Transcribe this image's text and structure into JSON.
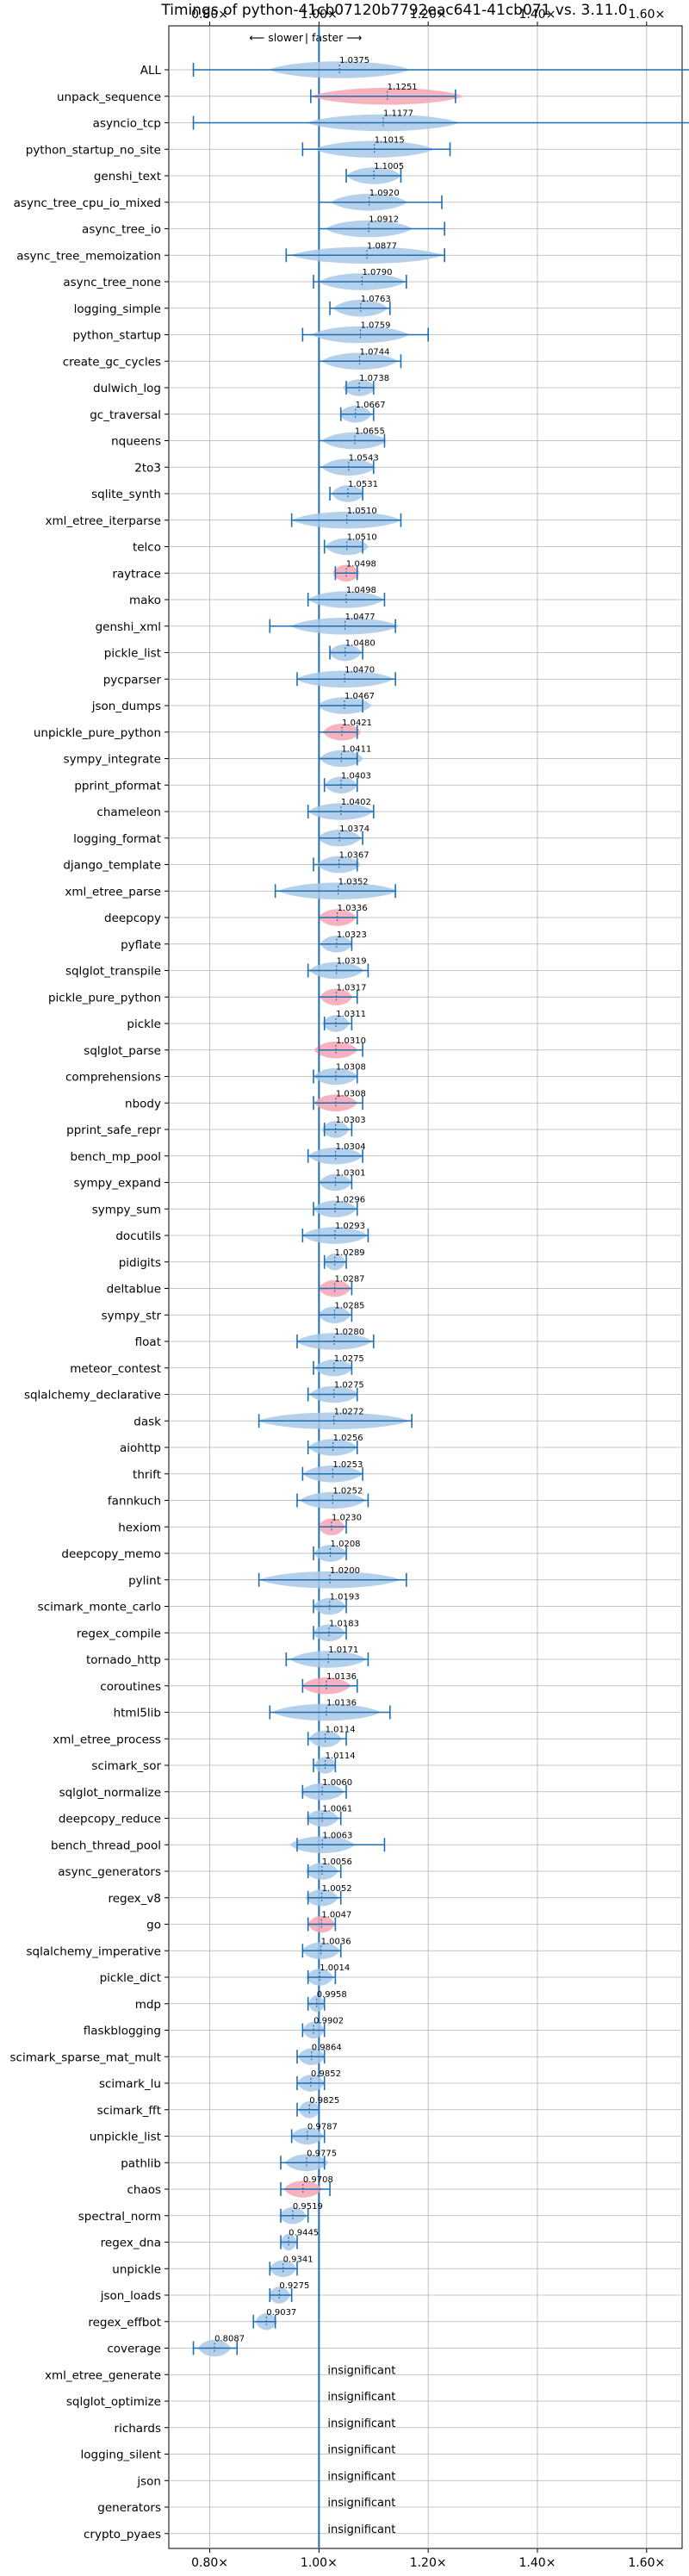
{
  "chart_data": {
    "type": "violin",
    "title": "Timings of python-41cb07120b7792eac641-41cb071 vs. 3.11.0",
    "direction_left": "⟵ slower",
    "direction_sep": "|",
    "direction_right": "faster ⟶",
    "xlim": [
      0.725,
      1.665
    ],
    "xticks": [
      {
        "value": 0.8,
        "label": "0.80×"
      },
      {
        "value": 1.0,
        "label": "1.00×"
      },
      {
        "value": 1.2,
        "label": "1.20×"
      },
      {
        "value": 1.4,
        "label": "1.40×"
      },
      {
        "value": 1.6,
        "label": "1.60×"
      }
    ],
    "grid": true,
    "reference_line": 1.0,
    "colors": {
      "normal": "#a8c8e8",
      "highlight": "#f4a6b4",
      "whisker": "#1f6eb0",
      "refline": "#1f6eb0",
      "grid": "#b0b0b0"
    },
    "insignificant_text": "insignificant",
    "benchmarks": [
      {
        "name": "ALL",
        "value": 1.0375,
        "label": "1.0375",
        "min": 0.77,
        "max": 1.69,
        "spread": 0.13,
        "highlight": false
      },
      {
        "name": "unpack_sequence",
        "value": 1.1251,
        "label": "1.1251",
        "min": 0.985,
        "max": 1.25,
        "spread": 0.14,
        "highlight": true
      },
      {
        "name": "asyncio_tcp",
        "value": 1.1177,
        "label": "1.1177",
        "min": 0.77,
        "max": 1.69,
        "spread": 0.14,
        "highlight": false
      },
      {
        "name": "python_startup_no_site",
        "value": 1.1015,
        "label": "1.1015",
        "min": 0.97,
        "max": 1.24,
        "spread": 0.11,
        "highlight": false
      },
      {
        "name": "genshi_text",
        "value": 1.1005,
        "label": "1.1005",
        "min": 1.05,
        "max": 1.15,
        "spread": 0.05,
        "highlight": false
      },
      {
        "name": "async_tree_cpu_io_mixed",
        "value": 1.092,
        "label": "1.0920",
        "min": 1.0,
        "max": 1.225,
        "spread": 0.07,
        "highlight": false
      },
      {
        "name": "async_tree_io",
        "value": 1.0912,
        "label": "1.0912",
        "min": 1.0,
        "max": 1.23,
        "spread": 0.08,
        "highlight": false
      },
      {
        "name": "async_tree_memoization",
        "value": 1.0877,
        "label": "1.0877",
        "min": 0.94,
        "max": 1.23,
        "spread": 0.14,
        "highlight": false
      },
      {
        "name": "async_tree_none",
        "value": 1.079,
        "label": "1.0790",
        "min": 0.99,
        "max": 1.16,
        "spread": 0.08,
        "highlight": false
      },
      {
        "name": "logging_simple",
        "value": 1.0763,
        "label": "1.0763",
        "min": 1.02,
        "max": 1.13,
        "spread": 0.05,
        "highlight": false
      },
      {
        "name": "python_startup",
        "value": 1.0759,
        "label": "1.0759",
        "min": 0.97,
        "max": 1.2,
        "spread": 0.09,
        "highlight": false
      },
      {
        "name": "create_gc_cycles",
        "value": 1.0744,
        "label": "1.0744",
        "min": 1.0,
        "max": 1.15,
        "spread": 0.07,
        "highlight": false
      },
      {
        "name": "dulwich_log",
        "value": 1.0738,
        "label": "1.0738",
        "min": 1.05,
        "max": 1.1,
        "spread": 0.03,
        "highlight": false
      },
      {
        "name": "gc_traversal",
        "value": 1.0667,
        "label": "1.0667",
        "min": 1.04,
        "max": 1.1,
        "spread": 0.03,
        "highlight": false
      },
      {
        "name": "nqueens",
        "value": 1.0655,
        "label": "1.0655",
        "min": 1.0,
        "max": 1.12,
        "spread": 0.06,
        "highlight": false
      },
      {
        "name": "2to3",
        "value": 1.0543,
        "label": "1.0543",
        "min": 1.0,
        "max": 1.1,
        "spread": 0.05,
        "highlight": false
      },
      {
        "name": "sqlite_synth",
        "value": 1.0531,
        "label": "1.0531",
        "min": 1.02,
        "max": 1.08,
        "spread": 0.03,
        "highlight": false
      },
      {
        "name": "xml_etree_iterparse",
        "value": 1.051,
        "label": "1.0510",
        "min": 0.95,
        "max": 1.15,
        "spread": 0.1,
        "highlight": false
      },
      {
        "name": "telco",
        "value": 1.051,
        "label": "1.0510",
        "min": 1.01,
        "max": 1.08,
        "spread": 0.04,
        "highlight": false
      },
      {
        "name": "raytrace",
        "value": 1.0498,
        "label": "1.0498",
        "min": 1.03,
        "max": 1.07,
        "spread": 0.025,
        "highlight": true
      },
      {
        "name": "mako",
        "value": 1.0498,
        "label": "1.0498",
        "min": 0.98,
        "max": 1.12,
        "spread": 0.07,
        "highlight": false
      },
      {
        "name": "genshi_xml",
        "value": 1.0477,
        "label": "1.0477",
        "min": 0.91,
        "max": 1.14,
        "spread": 0.1,
        "highlight": false
      },
      {
        "name": "pickle_list",
        "value": 1.048,
        "label": "1.0480",
        "min": 1.02,
        "max": 1.08,
        "spread": 0.03,
        "highlight": false
      },
      {
        "name": "pycparser",
        "value": 1.047,
        "label": "1.0470",
        "min": 0.96,
        "max": 1.14,
        "spread": 0.09,
        "highlight": false
      },
      {
        "name": "json_dumps",
        "value": 1.0467,
        "label": "1.0467",
        "min": 1.0,
        "max": 1.08,
        "spread": 0.05,
        "highlight": false
      },
      {
        "name": "unpickle_pure_python",
        "value": 1.0421,
        "label": "1.0421",
        "min": 1.0,
        "max": 1.07,
        "spread": 0.035,
        "highlight": true
      },
      {
        "name": "sympy_integrate",
        "value": 1.0411,
        "label": "1.0411",
        "min": 1.0,
        "max": 1.07,
        "spread": 0.04,
        "highlight": false
      },
      {
        "name": "pprint_pformat",
        "value": 1.0403,
        "label": "1.0403",
        "min": 1.01,
        "max": 1.07,
        "spread": 0.03,
        "highlight": false
      },
      {
        "name": "chameleon",
        "value": 1.0402,
        "label": "1.0402",
        "min": 0.98,
        "max": 1.1,
        "spread": 0.06,
        "highlight": false
      },
      {
        "name": "logging_format",
        "value": 1.0374,
        "label": "1.0374",
        "min": 1.0,
        "max": 1.08,
        "spread": 0.04,
        "highlight": false
      },
      {
        "name": "django_template",
        "value": 1.0367,
        "label": "1.0367",
        "min": 0.99,
        "max": 1.07,
        "spread": 0.04,
        "highlight": false
      },
      {
        "name": "xml_etree_parse",
        "value": 1.0352,
        "label": "1.0352",
        "min": 0.92,
        "max": 1.14,
        "spread": 0.11,
        "highlight": false
      },
      {
        "name": "deepcopy",
        "value": 1.0336,
        "label": "1.0336",
        "min": 1.0,
        "max": 1.07,
        "spread": 0.035,
        "highlight": true
      },
      {
        "name": "pyflate",
        "value": 1.0323,
        "label": "1.0323",
        "min": 1.0,
        "max": 1.06,
        "spread": 0.03,
        "highlight": false
      },
      {
        "name": "sqlglot_transpile",
        "value": 1.0319,
        "label": "1.0319",
        "min": 0.98,
        "max": 1.09,
        "spread": 0.05,
        "highlight": false
      },
      {
        "name": "pickle_pure_python",
        "value": 1.0317,
        "label": "1.0317",
        "min": 1.0,
        "max": 1.07,
        "spread": 0.03,
        "highlight": true
      },
      {
        "name": "pickle",
        "value": 1.0311,
        "label": "1.0311",
        "min": 1.01,
        "max": 1.06,
        "spread": 0.025,
        "highlight": false
      },
      {
        "name": "sqlglot_parse",
        "value": 1.031,
        "label": "1.0310",
        "min": 1.0,
        "max": 1.08,
        "spread": 0.04,
        "highlight": true
      },
      {
        "name": "comprehensions",
        "value": 1.0308,
        "label": "1.0308",
        "min": 0.99,
        "max": 1.07,
        "spread": 0.04,
        "highlight": false
      },
      {
        "name": "nbody",
        "value": 1.0308,
        "label": "1.0308",
        "min": 0.99,
        "max": 1.08,
        "spread": 0.04,
        "highlight": true
      },
      {
        "name": "pprint_safe_repr",
        "value": 1.0303,
        "label": "1.0303",
        "min": 1.01,
        "max": 1.06,
        "spread": 0.025,
        "highlight": false
      },
      {
        "name": "bench_mp_pool",
        "value": 1.0304,
        "label": "1.0304",
        "min": 0.98,
        "max": 1.08,
        "spread": 0.05,
        "highlight": false
      },
      {
        "name": "sympy_expand",
        "value": 1.0301,
        "label": "1.0301",
        "min": 1.0,
        "max": 1.06,
        "spread": 0.03,
        "highlight": false
      },
      {
        "name": "sympy_sum",
        "value": 1.0296,
        "label": "1.0296",
        "min": 0.99,
        "max": 1.07,
        "spread": 0.04,
        "highlight": false
      },
      {
        "name": "docutils",
        "value": 1.0293,
        "label": "1.0293",
        "min": 0.97,
        "max": 1.09,
        "spread": 0.06,
        "highlight": false
      },
      {
        "name": "pidigits",
        "value": 1.0289,
        "label": "1.0289",
        "min": 1.01,
        "max": 1.05,
        "spread": 0.02,
        "highlight": false
      },
      {
        "name": "deltablue",
        "value": 1.0287,
        "label": "1.0287",
        "min": 1.0,
        "max": 1.06,
        "spread": 0.03,
        "highlight": true
      },
      {
        "name": "sympy_str",
        "value": 1.0285,
        "label": "1.0285",
        "min": 1.0,
        "max": 1.06,
        "spread": 0.03,
        "highlight": false
      },
      {
        "name": "float",
        "value": 1.028,
        "label": "1.0280",
        "min": 0.96,
        "max": 1.1,
        "spread": 0.07,
        "highlight": false
      },
      {
        "name": "meteor_contest",
        "value": 1.0275,
        "label": "1.0275",
        "min": 0.99,
        "max": 1.06,
        "spread": 0.035,
        "highlight": false
      },
      {
        "name": "sqlalchemy_declarative",
        "value": 1.0275,
        "label": "1.0275",
        "min": 0.98,
        "max": 1.07,
        "spread": 0.045,
        "highlight": false
      },
      {
        "name": "dask",
        "value": 1.0272,
        "label": "1.0272",
        "min": 0.89,
        "max": 1.17,
        "spread": 0.14,
        "highlight": false
      },
      {
        "name": "aiohttp",
        "value": 1.0256,
        "label": "1.0256",
        "min": 0.98,
        "max": 1.07,
        "spread": 0.045,
        "highlight": false
      },
      {
        "name": "thrift",
        "value": 1.0253,
        "label": "1.0253",
        "min": 0.97,
        "max": 1.08,
        "spread": 0.055,
        "highlight": false
      },
      {
        "name": "fannkuch",
        "value": 1.0252,
        "label": "1.0252",
        "min": 0.96,
        "max": 1.09,
        "spread": 0.06,
        "highlight": false
      },
      {
        "name": "hexiom",
        "value": 1.023,
        "label": "1.0230",
        "min": 1.0,
        "max": 1.05,
        "spread": 0.025,
        "highlight": true
      },
      {
        "name": "deepcopy_memo",
        "value": 1.0208,
        "label": "1.0208",
        "min": 0.99,
        "max": 1.05,
        "spread": 0.03,
        "highlight": false
      },
      {
        "name": "pylint",
        "value": 1.02,
        "label": "1.0200",
        "min": 0.89,
        "max": 1.16,
        "spread": 0.13,
        "highlight": false
      },
      {
        "name": "scimark_monte_carlo",
        "value": 1.0193,
        "label": "1.0193",
        "min": 0.99,
        "max": 1.05,
        "spread": 0.03,
        "highlight": false
      },
      {
        "name": "regex_compile",
        "value": 1.0183,
        "label": "1.0183",
        "min": 0.99,
        "max": 1.05,
        "spread": 0.03,
        "highlight": false
      },
      {
        "name": "tornado_http",
        "value": 1.0171,
        "label": "1.0171",
        "min": 0.94,
        "max": 1.09,
        "spread": 0.07,
        "highlight": false
      },
      {
        "name": "coroutines",
        "value": 1.0136,
        "label": "1.0136",
        "min": 0.97,
        "max": 1.07,
        "spread": 0.045,
        "highlight": true
      },
      {
        "name": "html5lib",
        "value": 1.0136,
        "label": "1.0136",
        "min": 0.91,
        "max": 1.13,
        "spread": 0.1,
        "highlight": false
      },
      {
        "name": "xml_etree_process",
        "value": 1.0114,
        "label": "1.0114",
        "min": 0.98,
        "max": 1.05,
        "spread": 0.03,
        "highlight": false
      },
      {
        "name": "scimark_sor",
        "value": 1.0114,
        "label": "1.0114",
        "min": 0.99,
        "max": 1.03,
        "spread": 0.02,
        "highlight": false
      },
      {
        "name": "sqlglot_normalize",
        "value": 1.006,
        "label": "1.0060",
        "min": 0.97,
        "max": 1.05,
        "spread": 0.04,
        "highlight": false
      },
      {
        "name": "deepcopy_reduce",
        "value": 1.0061,
        "label": "1.0061",
        "min": 0.98,
        "max": 1.04,
        "spread": 0.03,
        "highlight": false
      },
      {
        "name": "bench_thread_pool",
        "value": 1.0063,
        "label": "1.0063",
        "min": 0.96,
        "max": 1.12,
        "spread": 0.06,
        "highlight": false
      },
      {
        "name": "async_generators",
        "value": 1.0056,
        "label": "1.0056",
        "min": 0.98,
        "max": 1.04,
        "spread": 0.03,
        "highlight": false
      },
      {
        "name": "regex_v8",
        "value": 1.0052,
        "label": "1.0052",
        "min": 0.98,
        "max": 1.04,
        "spread": 0.03,
        "highlight": false
      },
      {
        "name": "go",
        "value": 1.0047,
        "label": "1.0047",
        "min": 0.98,
        "max": 1.03,
        "spread": 0.025,
        "highlight": true
      },
      {
        "name": "sqlalchemy_imperative",
        "value": 1.0036,
        "label": "1.0036",
        "min": 0.97,
        "max": 1.04,
        "spread": 0.035,
        "highlight": false
      },
      {
        "name": "pickle_dict",
        "value": 1.0014,
        "label": "1.0014",
        "min": 0.98,
        "max": 1.03,
        "spread": 0.025,
        "highlight": false
      },
      {
        "name": "mdp",
        "value": 0.9958,
        "label": "0.9958",
        "min": 0.98,
        "max": 1.01,
        "spread": 0.015,
        "highlight": false
      },
      {
        "name": "flaskblogging",
        "value": 0.9902,
        "label": "0.9902",
        "min": 0.97,
        "max": 1.01,
        "spread": 0.02,
        "highlight": false
      },
      {
        "name": "scimark_sparse_mat_mult",
        "value": 0.9864,
        "label": "0.9864",
        "min": 0.96,
        "max": 1.01,
        "spread": 0.025,
        "highlight": false
      },
      {
        "name": "scimark_lu",
        "value": 0.9852,
        "label": "0.9852",
        "min": 0.96,
        "max": 1.01,
        "spread": 0.025,
        "highlight": false
      },
      {
        "name": "scimark_fft",
        "value": 0.9825,
        "label": "0.9825",
        "min": 0.96,
        "max": 1.0,
        "spread": 0.02,
        "highlight": false
      },
      {
        "name": "unpickle_list",
        "value": 0.9787,
        "label": "0.9787",
        "min": 0.95,
        "max": 1.01,
        "spread": 0.03,
        "highlight": false
      },
      {
        "name": "pathlib",
        "value": 0.9775,
        "label": "0.9775",
        "min": 0.93,
        "max": 1.01,
        "spread": 0.04,
        "highlight": false
      },
      {
        "name": "chaos",
        "value": 0.9708,
        "label": "0.9708",
        "min": 0.93,
        "max": 1.02,
        "spread": 0.035,
        "highlight": true
      },
      {
        "name": "spectral_norm",
        "value": 0.9519,
        "label": "0.9519",
        "min": 0.93,
        "max": 0.98,
        "spread": 0.025,
        "highlight": false
      },
      {
        "name": "regex_dna",
        "value": 0.9445,
        "label": "0.9445",
        "min": 0.93,
        "max": 0.96,
        "spread": 0.015,
        "highlight": false
      },
      {
        "name": "unpickle",
        "value": 0.9341,
        "label": "0.9341",
        "min": 0.91,
        "max": 0.96,
        "spread": 0.025,
        "highlight": false
      },
      {
        "name": "json_loads",
        "value": 0.9275,
        "label": "0.9275",
        "min": 0.91,
        "max": 0.95,
        "spread": 0.02,
        "highlight": false
      },
      {
        "name": "regex_effbot",
        "value": 0.9037,
        "label": "0.9037",
        "min": 0.88,
        "max": 0.92,
        "spread": 0.02,
        "highlight": false
      },
      {
        "name": "coverage",
        "value": 0.8087,
        "label": "0.8087",
        "min": 0.77,
        "max": 0.85,
        "spread": 0.03,
        "highlight": false
      },
      {
        "name": "xml_etree_generate",
        "insignificant": true
      },
      {
        "name": "sqlglot_optimize",
        "insignificant": true
      },
      {
        "name": "richards",
        "insignificant": true
      },
      {
        "name": "logging_silent",
        "insignificant": true
      },
      {
        "name": "json",
        "insignificant": true
      },
      {
        "name": "generators",
        "insignificant": true
      },
      {
        "name": "crypto_pyaes",
        "insignificant": true
      }
    ]
  }
}
